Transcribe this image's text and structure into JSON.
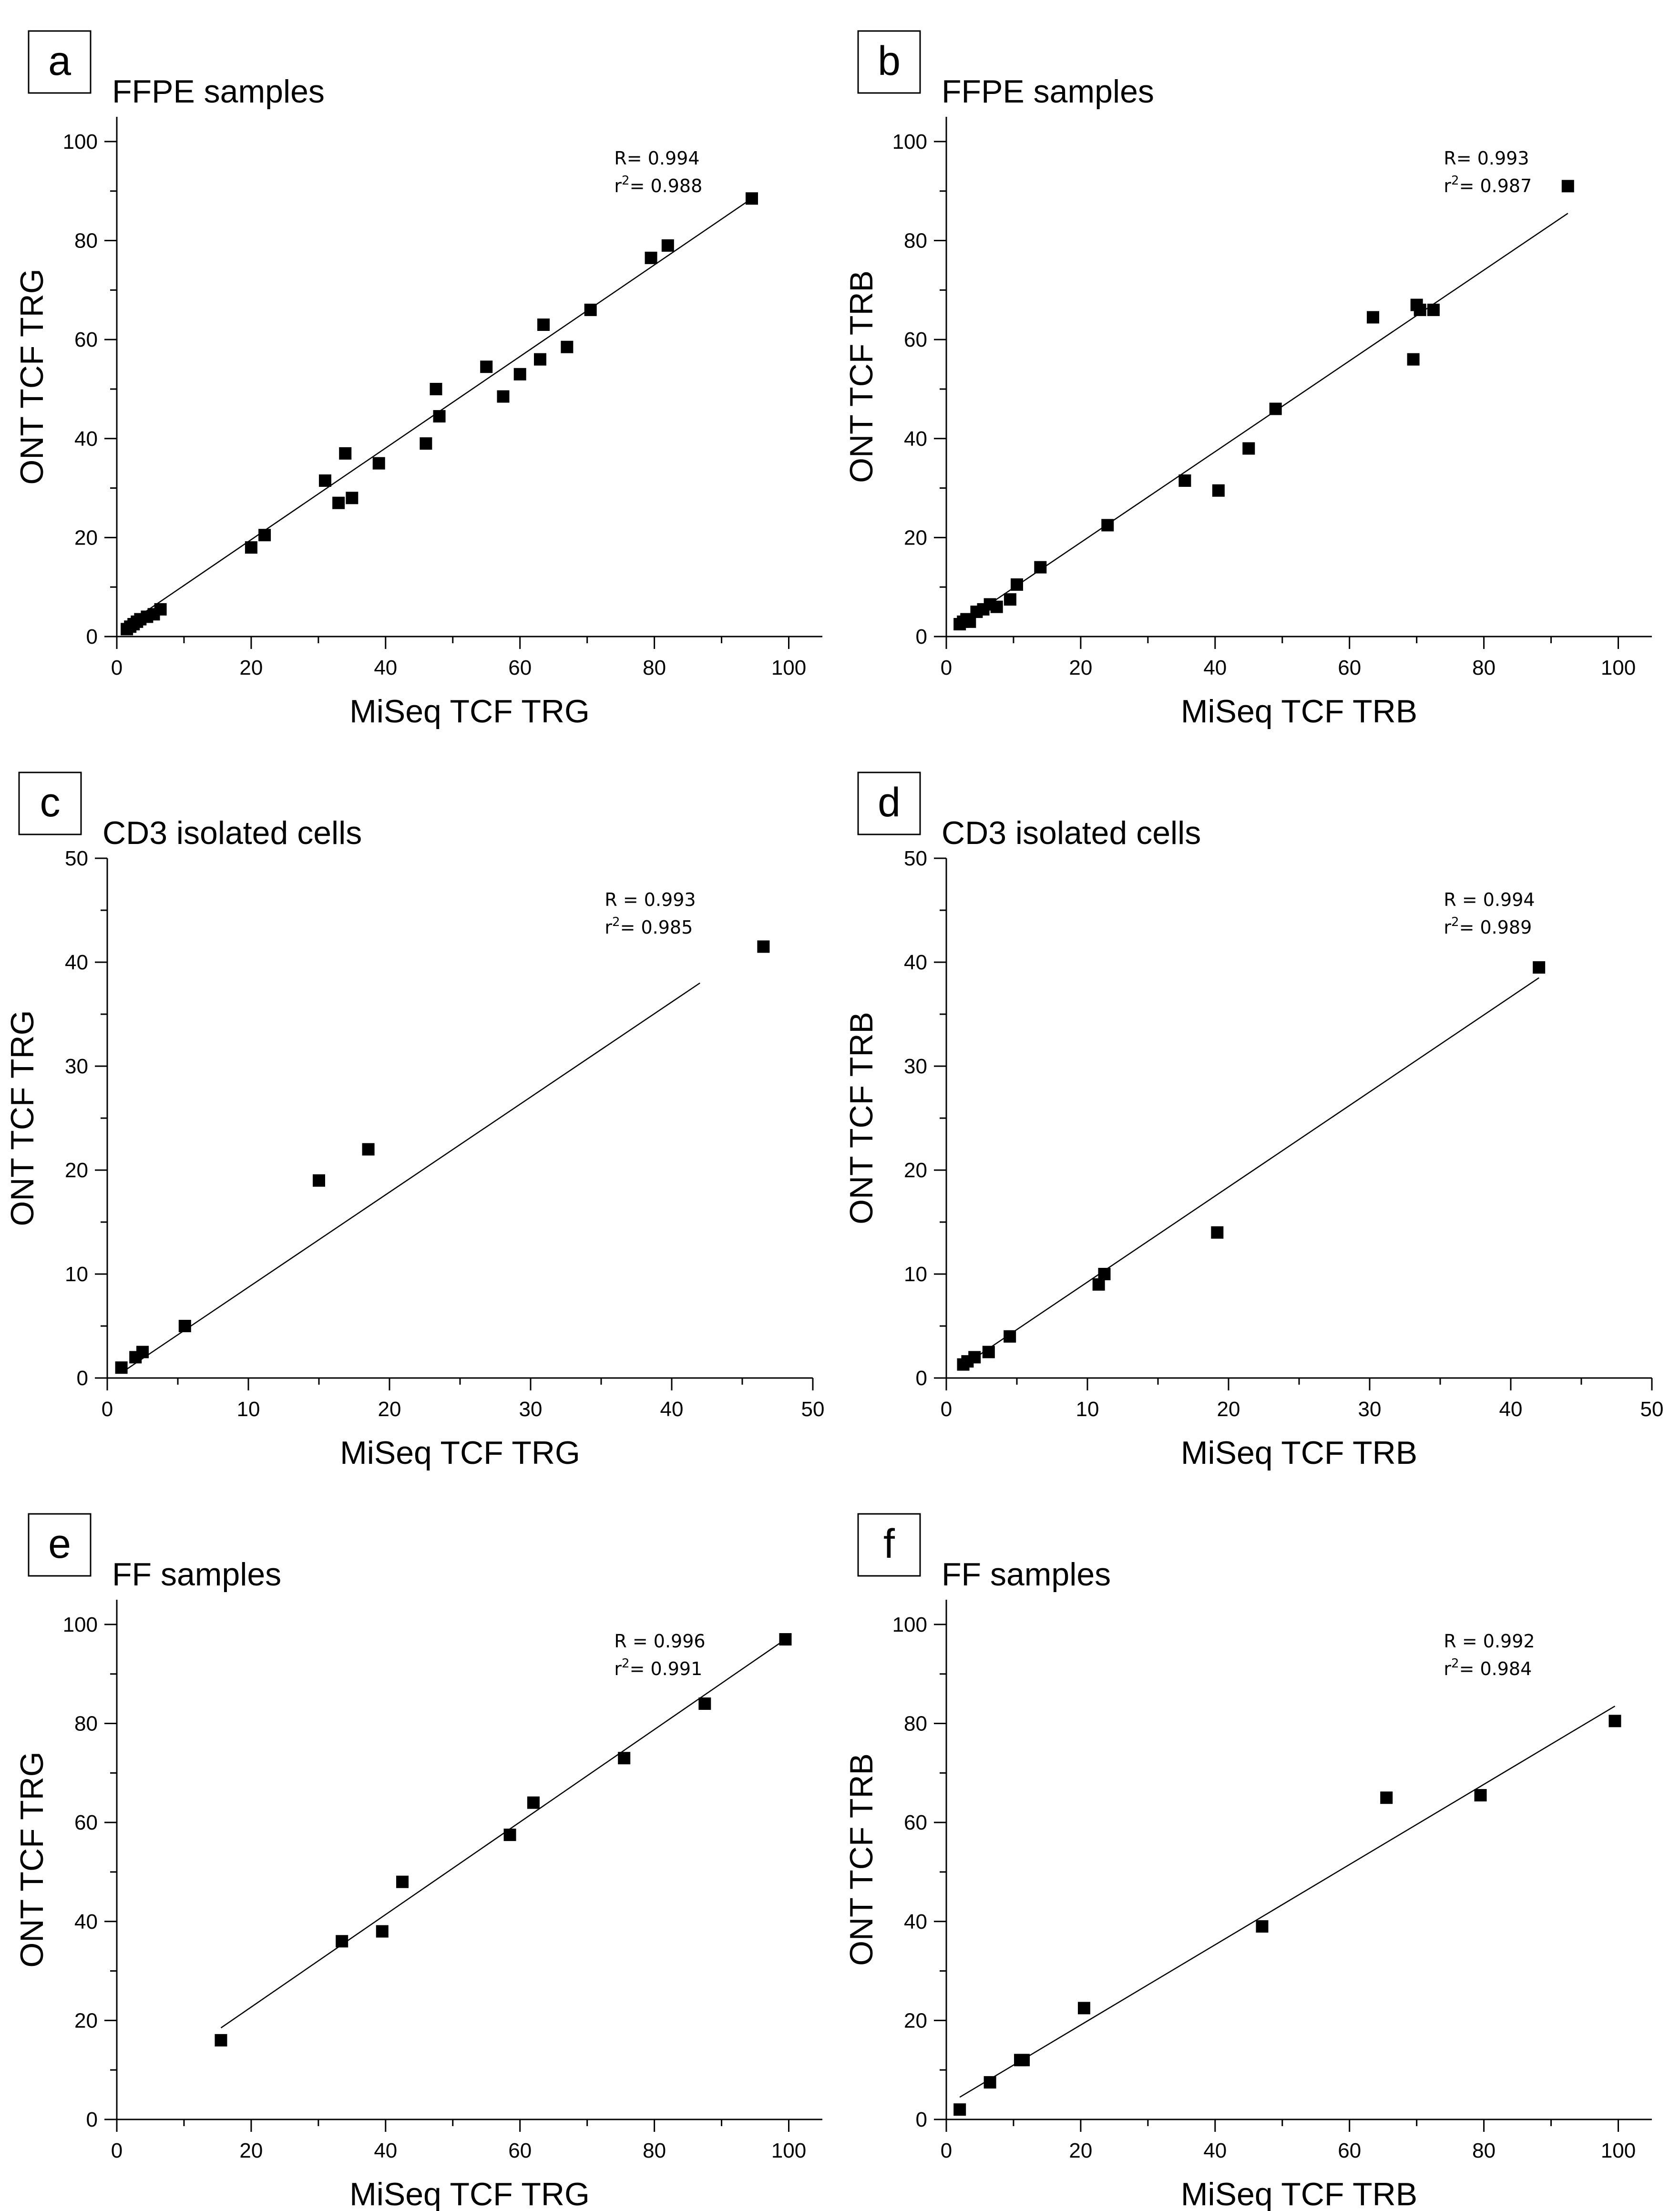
{
  "chart_data": [
    {
      "type": "scatter",
      "panel_label": "a",
      "title": "FFPE samples",
      "xlabel": "MiSeq TCF TRG",
      "ylabel": "ONT TCF TRG",
      "xlim": [
        0,
        105
      ],
      "ylim": [
        0,
        105
      ],
      "xticks": [
        0,
        20,
        40,
        60,
        80,
        100
      ],
      "yticks": [
        0,
        20,
        40,
        60,
        80,
        100
      ],
      "minor_step": 10,
      "stats": {
        "R": "R= 0.994",
        "r2_prefix": "r",
        "r2_value": "= 0.988"
      },
      "fit_line": [
        [
          1,
          2
        ],
        [
          94.5,
          88.5
        ]
      ],
      "x": [
        1.5,
        2,
        2.5,
        3,
        3.5,
        4.5,
        5.5,
        6.5,
        20,
        22,
        31,
        33,
        34,
        35,
        39,
        46,
        47.5,
        48,
        55,
        57.5,
        60,
        63,
        63.5,
        67,
        70.5,
        79.5,
        82,
        94.5
      ],
      "y": [
        1.5,
        2,
        2.5,
        3,
        3.5,
        4,
        4.5,
        5.5,
        18,
        20.5,
        31.5,
        27,
        37,
        28,
        35,
        39,
        50,
        44.5,
        54.5,
        48.5,
        53,
        56,
        63,
        58.5,
        66,
        76.5,
        79,
        88.5
      ]
    },
    {
      "type": "scatter",
      "panel_label": "b",
      "title": "FFPE samples",
      "xlabel": "MiSeq TCF TRB",
      "ylabel": "ONT TCF TRB",
      "xlim": [
        0,
        105
      ],
      "ylim": [
        0,
        105
      ],
      "xticks": [
        0,
        20,
        40,
        60,
        80,
        100
      ],
      "yticks": [
        0,
        20,
        40,
        60,
        80,
        100
      ],
      "minor_step": 10,
      "stats": {
        "R": "R= 0.993",
        "r2_prefix": "r",
        "r2_value": "= 0.987"
      },
      "fit_line": [
        [
          2,
          2.5
        ],
        [
          92.5,
          85.5
        ]
      ],
      "x": [
        2,
        2.5,
        3,
        3.5,
        4.5,
        5.5,
        6.5,
        7.5,
        9.5,
        10.5,
        14,
        24,
        35.5,
        40.5,
        45,
        49,
        63.5,
        69.5,
        70,
        70.5,
        72.5,
        92.5
      ],
      "y": [
        2.5,
        3,
        3.5,
        3,
        5,
        5.5,
        6.5,
        6,
        7.5,
        10.5,
        14,
        22.5,
        31.5,
        29.5,
        38,
        46,
        64.5,
        56,
        67,
        66,
        66,
        91
      ]
    },
    {
      "type": "scatter",
      "panel_label": "c",
      "title": "CD3 isolated cells",
      "xlabel": "MiSeq TCF TRG",
      "ylabel": "ONT TCF TRG",
      "xlim": [
        0,
        50
      ],
      "ylim": [
        0,
        50
      ],
      "xticks": [
        0,
        10,
        20,
        30,
        40,
        50
      ],
      "yticks": [
        0,
        10,
        20,
        30,
        40,
        50
      ],
      "minor_step": 5,
      "stats": {
        "R": "R = 0.993",
        "r2_prefix": "r",
        "r2_value": "= 0.985"
      },
      "fit_line": [
        [
          1,
          0.5
        ],
        [
          42,
          38
        ]
      ],
      "x": [
        1,
        2,
        2.5,
        5.5,
        15,
        18.5,
        46.5
      ],
      "y": [
        1,
        2,
        2.5,
        5,
        19,
        22,
        41.5
      ]
    },
    {
      "type": "scatter",
      "panel_label": "d",
      "title": "CD3 isolated cells",
      "xlabel": "MiSeq TCF TRB",
      "ylabel": "ONT TCF TRB",
      "xlim": [
        0,
        50
      ],
      "ylim": [
        0,
        50
      ],
      "xticks": [
        0,
        10,
        20,
        30,
        40,
        50
      ],
      "yticks": [
        0,
        10,
        20,
        30,
        40,
        50
      ],
      "minor_step": 5,
      "stats": {
        "R": "R =  0.994",
        "r2_prefix": "r",
        "r2_value": "= 0.989"
      },
      "fit_line": [
        [
          1,
          1
        ],
        [
          42,
          38.5
        ]
      ],
      "x": [
        1.2,
        1.5,
        2,
        3,
        4.5,
        10.8,
        11.2,
        19.2,
        42
      ],
      "y": [
        1.3,
        1.6,
        2,
        2.5,
        4,
        9,
        10,
        14,
        39.5
      ]
    },
    {
      "type": "scatter",
      "panel_label": "e",
      "title": "FF samples",
      "xlabel": "MiSeq TCF TRG",
      "ylabel": "ONT TCF TRG",
      "xlim": [
        0,
        105
      ],
      "ylim": [
        0,
        105
      ],
      "xticks": [
        0,
        20,
        40,
        60,
        80,
        100
      ],
      "yticks": [
        0,
        20,
        40,
        60,
        80,
        100
      ],
      "minor_step": 10,
      "stats": {
        "R": "R = 0.996",
        "r2_prefix": "r",
        "r2_value": "= 0.991"
      },
      "fit_line": [
        [
          15.5,
          18.5
        ],
        [
          99.5,
          97
        ]
      ],
      "x": [
        15.5,
        33.5,
        39.5,
        42.5,
        58.5,
        62,
        75.5,
        87.5,
        99.5
      ],
      "y": [
        16,
        36,
        38,
        48,
        57.5,
        64,
        73,
        84,
        97
      ]
    },
    {
      "type": "scatter",
      "panel_label": "f",
      "title": "FF samples",
      "xlabel": "MiSeq TCF TRB",
      "ylabel": "ONT TCF TRB",
      "xlim": [
        0,
        105
      ],
      "ylim": [
        0,
        105
      ],
      "xticks": [
        0,
        20,
        40,
        60,
        80,
        100
      ],
      "yticks": [
        0,
        20,
        40,
        60,
        80,
        100
      ],
      "minor_step": 10,
      "stats": {
        "R": "R = 0.992",
        "r2_prefix": "r",
        "r2_value": "= 0.984"
      },
      "fit_line": [
        [
          2,
          4.5
        ],
        [
          99.5,
          83.5
        ]
      ],
      "x": [
        2,
        6.5,
        11,
        11.5,
        20.5,
        47,
        65.5,
        79.5,
        99.5
      ],
      "y": [
        2,
        7.5,
        12,
        12,
        22.5,
        39,
        65,
        65.5,
        80.5
      ]
    }
  ]
}
